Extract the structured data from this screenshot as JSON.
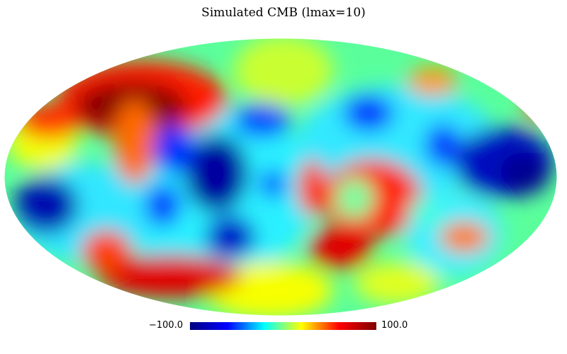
{
  "title": "Simulated CMB (lmax=10)",
  "projection": "mollweide",
  "colormap": "jet",
  "colormap_stops": [
    "#00007f",
    "#0000ff",
    "#00ffff",
    "#ffff00",
    "#ff0000",
    "#7f0000"
  ],
  "colorbar": {
    "min_label": "−100.0",
    "max_label": "100.0",
    "min": -100,
    "max": 100
  }
}
